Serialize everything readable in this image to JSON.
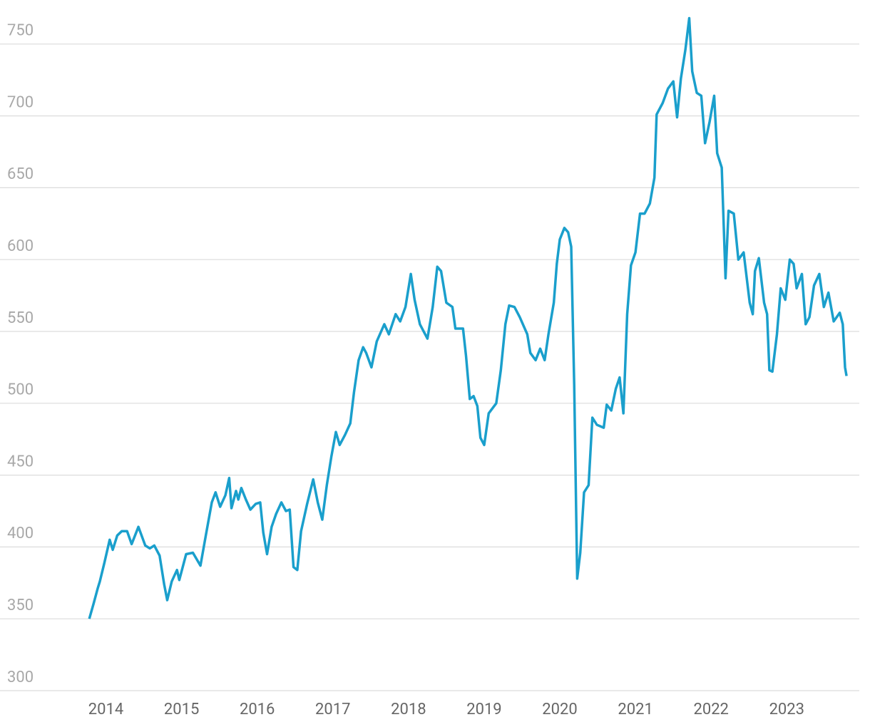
{
  "chart_data": {
    "type": "line",
    "x": [
      2013.78,
      2013.84,
      2013.89,
      2013.92,
      2013.98,
      2014.05,
      2014.09,
      2014.15,
      2014.21,
      2014.28,
      2014.34,
      2014.43,
      2014.52,
      2014.58,
      2014.64,
      2014.71,
      2014.77,
      2014.81,
      2014.87,
      2014.94,
      2014.97,
      2015.06,
      2015.15,
      2015.25,
      2015.32,
      2015.4,
      2015.45,
      2015.51,
      2015.58,
      2015.63,
      2015.66,
      2015.72,
      2015.75,
      2015.79,
      2015.85,
      2015.91,
      2015.98,
      2016.04,
      2016.08,
      2016.13,
      2016.19,
      2016.25,
      2016.32,
      2016.38,
      2016.43,
      2016.48,
      2016.53,
      2016.58,
      2016.66,
      2016.74,
      2016.8,
      2016.86,
      2016.92,
      2016.98,
      2017.04,
      2017.09,
      2017.16,
      2017.23,
      2017.28,
      2017.34,
      2017.4,
      2017.44,
      2017.51,
      2017.58,
      2017.68,
      2017.74,
      2017.83,
      2017.89,
      2017.96,
      2018.03,
      2018.08,
      2018.15,
      2018.25,
      2018.32,
      2018.38,
      2018.43,
      2018.5,
      2018.58,
      2018.62,
      2018.72,
      2018.76,
      2018.81,
      2018.86,
      2018.91,
      2018.95,
      2019.0,
      2019.06,
      2019.16,
      2019.22,
      2019.28,
      2019.33,
      2019.4,
      2019.47,
      2019.57,
      2019.61,
      2019.68,
      2019.74,
      2019.8,
      2019.85,
      2019.92,
      2019.96,
      2020.0,
      2020.06,
      2020.11,
      2020.15,
      2020.19,
      2020.23,
      2020.27,
      2020.32,
      2020.38,
      2020.43,
      2020.49,
      2020.58,
      2020.62,
      2020.68,
      2020.74,
      2020.79,
      2020.84,
      2020.89,
      2020.94,
      2021.0,
      2021.06,
      2021.12,
      2021.19,
      2021.25,
      2021.28,
      2021.36,
      2021.43,
      2021.5,
      2021.55,
      2021.6,
      2021.66,
      2021.71,
      2021.75,
      2021.81,
      2021.87,
      2021.92,
      2021.98,
      2022.04,
      2022.08,
      2022.14,
      2022.19,
      2022.23,
      2022.3,
      2022.36,
      2022.43,
      2022.51,
      2022.55,
      2022.58,
      2022.63,
      2022.7,
      2022.74,
      2022.77,
      2022.81,
      2022.87,
      2022.92,
      2022.98,
      2023.04,
      2023.09,
      2023.13,
      2023.2,
      2023.25,
      2023.3,
      2023.36,
      2023.43,
      2023.49,
      2023.55,
      2023.62,
      2023.7,
      2023.74,
      2023.77,
      2023.79
    ],
    "series": [
      {
        "color": "#1a9fcc",
        "values": [
          350,
          361,
          371,
          376,
          389,
          405,
          398,
          408,
          411,
          411,
          402,
          414,
          401,
          399,
          401,
          394,
          374,
          363,
          376,
          384,
          377,
          395,
          396,
          387,
          408,
          431,
          438,
          428,
          436,
          448,
          427,
          439,
          433,
          441,
          433,
          426,
          430,
          431,
          410,
          395,
          414,
          423,
          431,
          425,
          426,
          386,
          384,
          411,
          430,
          447,
          431,
          419,
          443,
          463,
          480,
          471,
          478,
          486,
          508,
          530,
          539,
          535,
          525,
          543,
          555,
          548,
          562,
          557,
          567,
          590,
          572,
          555,
          545,
          567,
          595,
          592,
          570,
          567,
          552,
          552,
          533,
          503,
          505,
          498,
          476,
          471,
          493,
          500,
          523,
          555,
          568,
          567,
          560,
          548,
          535,
          530,
          538,
          530,
          548,
          570,
          597,
          614,
          622,
          619,
          609,
          513,
          378,
          396,
          438,
          443,
          490,
          485,
          483,
          499,
          495,
          510,
          518,
          493,
          562,
          596,
          605,
          632,
          632,
          639,
          657,
          701,
          709,
          719,
          724,
          699,
          726,
          746,
          768,
          731,
          716,
          714,
          681,
          696,
          714,
          674,
          664,
          587,
          634,
          632,
          600,
          605,
          570,
          562,
          592,
          601,
          570,
          562,
          523,
          522,
          548,
          580,
          572,
          600,
          597,
          580,
          590,
          555,
          560,
          582,
          590,
          567,
          577,
          557,
          563,
          555,
          525,
          519
        ]
      }
    ],
    "xlim": [
      2012.6,
      2024.1
    ],
    "xticks": [
      2014,
      2015,
      2016,
      2017,
      2018,
      2019,
      2020,
      2021,
      2022,
      2023
    ],
    "ylim": [
      300,
      775
    ],
    "yticks": [
      300,
      350,
      400,
      450,
      500,
      550,
      600,
      650,
      700,
      750
    ],
    "grid": true
  }
}
